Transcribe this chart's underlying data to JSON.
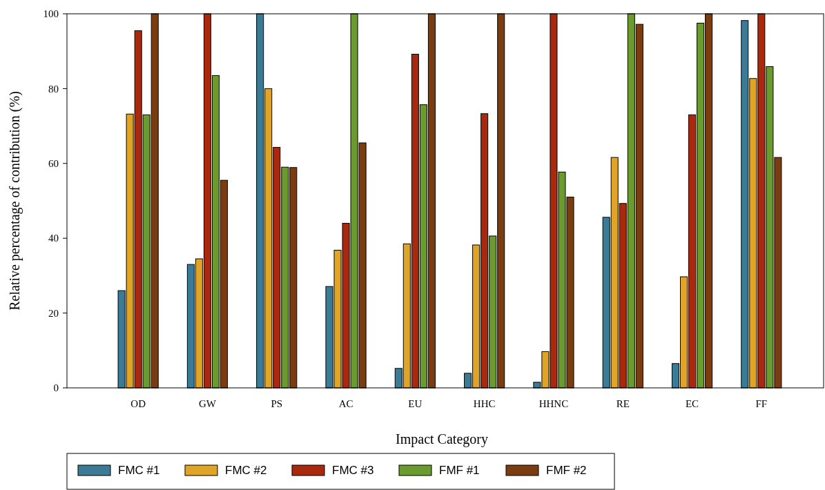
{
  "chart_data": {
    "type": "bar",
    "xlabel": "Impact Category",
    "ylabel": "Relative percentage of contribution (%)",
    "categories": [
      "OD",
      "GW",
      "PS",
      "AC",
      "EU",
      "HHC",
      "HHNC",
      "RE",
      "EC",
      "FF"
    ],
    "series": [
      {
        "name": "FMC #1",
        "color": "#3b7b96",
        "values": [
          26,
          33,
          100,
          27.1,
          5.2,
          3.9,
          1.5,
          45.6,
          6.5,
          98.2
        ]
      },
      {
        "name": "FMC #2",
        "color": "#e0a527",
        "values": [
          73.2,
          34.5,
          80,
          36.8,
          38.5,
          38.2,
          9.7,
          61.6,
          29.7,
          82.7
        ]
      },
      {
        "name": "FMC #3",
        "color": "#a9290f",
        "values": [
          95.5,
          100,
          64.3,
          44,
          89.2,
          73.3,
          100,
          49.3,
          73,
          100
        ]
      },
      {
        "name": "FMF #1",
        "color": "#6b9a2f",
        "values": [
          73,
          83.5,
          59,
          100,
          75.7,
          40.6,
          57.7,
          100,
          97.5,
          85.9
        ]
      },
      {
        "name": "FMF #2",
        "color": "#7b3d10",
        "values": [
          100,
          55.5,
          58.9,
          65.5,
          100,
          100,
          51,
          97.2,
          100,
          61.6
        ]
      }
    ],
    "ylim": [
      0,
      100
    ],
    "yticks": [
      0,
      20,
      40,
      60,
      80,
      100
    ],
    "grid": false,
    "legend": "bottom"
  }
}
